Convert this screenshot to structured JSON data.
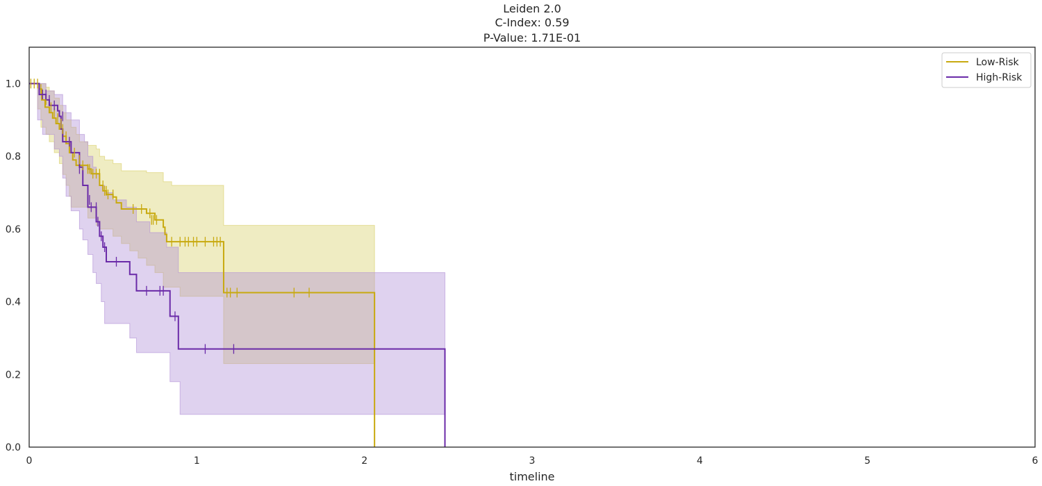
{
  "chart_data": {
    "type": "line",
    "subtype": "kaplan-meier",
    "title_lines": [
      "Leiden 2.0",
      "C-Index: 0.59",
      "P-Value: 1.71E-01"
    ],
    "xlabel": "timeline",
    "ylabel": "",
    "xlim": [
      0,
      6
    ],
    "ylim": [
      0,
      1.1
    ],
    "xticks": [
      0,
      1,
      2,
      3,
      4,
      5,
      6
    ],
    "yticks": [
      0.0,
      0.2,
      0.4,
      0.6,
      0.8,
      1.0
    ],
    "xtick_labels": [
      "0",
      "1",
      "2",
      "3",
      "4",
      "5",
      "6"
    ],
    "ytick_labels": [
      "0.0",
      "0.2",
      "0.4",
      "0.6",
      "0.8",
      "1.0"
    ],
    "grid": false,
    "legend_position": "top-right",
    "series": [
      {
        "name": "Low-Risk",
        "color": "#c8a90f",
        "fill_color": "#d8cf66",
        "steps": [
          [
            0,
            1.0
          ],
          [
            0.06,
            0.985
          ],
          [
            0.075,
            0.955
          ],
          [
            0.095,
            0.935
          ],
          [
            0.12,
            0.92
          ],
          [
            0.14,
            0.905
          ],
          [
            0.16,
            0.89
          ],
          [
            0.18,
            0.875
          ],
          [
            0.2,
            0.855
          ],
          [
            0.22,
            0.835
          ],
          [
            0.24,
            0.81
          ],
          [
            0.26,
            0.79
          ],
          [
            0.28,
            0.775
          ],
          [
            0.35,
            0.765
          ],
          [
            0.37,
            0.752
          ],
          [
            0.42,
            0.72
          ],
          [
            0.44,
            0.705
          ],
          [
            0.46,
            0.695
          ],
          [
            0.5,
            0.688
          ],
          [
            0.52,
            0.672
          ],
          [
            0.55,
            0.672
          ],
          [
            0.55,
            0.655
          ],
          [
            0.63,
            0.655
          ],
          [
            0.7,
            0.643
          ],
          [
            0.75,
            0.625
          ],
          [
            0.8,
            0.605
          ],
          [
            0.81,
            0.585
          ],
          [
            0.82,
            0.565
          ],
          [
            1.16,
            0.425
          ],
          [
            2.06,
            0.0
          ]
        ],
        "end_x": 2.06,
        "ci_lower": [
          [
            0,
            1.0
          ],
          [
            0.05,
            0.93
          ],
          [
            0.07,
            0.88
          ],
          [
            0.1,
            0.86
          ],
          [
            0.12,
            0.84
          ],
          [
            0.15,
            0.81
          ],
          [
            0.18,
            0.78
          ],
          [
            0.2,
            0.75
          ],
          [
            0.22,
            0.72
          ],
          [
            0.24,
            0.69
          ],
          [
            0.25,
            0.66
          ],
          [
            0.3,
            0.66
          ],
          [
            0.35,
            0.63
          ],
          [
            0.4,
            0.61
          ],
          [
            0.42,
            0.6
          ],
          [
            0.5,
            0.58
          ],
          [
            0.55,
            0.56
          ],
          [
            0.6,
            0.54
          ],
          [
            0.65,
            0.52
          ],
          [
            0.7,
            0.5
          ],
          [
            0.75,
            0.48
          ],
          [
            0.8,
            0.44
          ],
          [
            0.9,
            0.415
          ],
          [
            1.16,
            0.23
          ]
        ],
        "ci_upper": [
          [
            0,
            1.0
          ],
          [
            0.05,
            1.0
          ],
          [
            0.1,
            0.99
          ],
          [
            0.12,
            0.98
          ],
          [
            0.15,
            0.96
          ],
          [
            0.18,
            0.94
          ],
          [
            0.2,
            0.92
          ],
          [
            0.22,
            0.9
          ],
          [
            0.25,
            0.88
          ],
          [
            0.28,
            0.86
          ],
          [
            0.3,
            0.84
          ],
          [
            0.35,
            0.83
          ],
          [
            0.4,
            0.82
          ],
          [
            0.42,
            0.8
          ],
          [
            0.45,
            0.79
          ],
          [
            0.5,
            0.78
          ],
          [
            0.55,
            0.76
          ],
          [
            0.7,
            0.755
          ],
          [
            0.8,
            0.73
          ],
          [
            0.85,
            0.72
          ],
          [
            1.16,
            0.61
          ]
        ],
        "ci_end_x": 2.06,
        "censored": [
          [
            0.01,
            1.0
          ],
          [
            0.03,
            1.0
          ],
          [
            0.05,
            1.0
          ],
          [
            0.07,
            0.985
          ],
          [
            0.1,
            0.955
          ],
          [
            0.13,
            0.935
          ],
          [
            0.15,
            0.92
          ],
          [
            0.17,
            0.905
          ],
          [
            0.19,
            0.89
          ],
          [
            0.2,
            0.875
          ],
          [
            0.22,
            0.855
          ],
          [
            0.24,
            0.835
          ],
          [
            0.27,
            0.81
          ],
          [
            0.3,
            0.79
          ],
          [
            0.32,
            0.775
          ],
          [
            0.35,
            0.765
          ],
          [
            0.36,
            0.765
          ],
          [
            0.38,
            0.752
          ],
          [
            0.4,
            0.752
          ],
          [
            0.42,
            0.752
          ],
          [
            0.44,
            0.72
          ],
          [
            0.45,
            0.705
          ],
          [
            0.46,
            0.705
          ],
          [
            0.47,
            0.695
          ],
          [
            0.5,
            0.695
          ],
          [
            0.62,
            0.655
          ],
          [
            0.67,
            0.655
          ],
          [
            0.72,
            0.643
          ],
          [
            0.73,
            0.625
          ],
          [
            0.74,
            0.625
          ],
          [
            0.76,
            0.625
          ],
          [
            0.85,
            0.565
          ],
          [
            0.9,
            0.565
          ],
          [
            0.93,
            0.565
          ],
          [
            0.95,
            0.565
          ],
          [
            0.98,
            0.565
          ],
          [
            1.0,
            0.565
          ],
          [
            1.05,
            0.565
          ],
          [
            1.1,
            0.565
          ],
          [
            1.12,
            0.565
          ],
          [
            1.14,
            0.565
          ],
          [
            1.18,
            0.425
          ],
          [
            1.2,
            0.425
          ],
          [
            1.24,
            0.425
          ],
          [
            1.58,
            0.425
          ],
          [
            1.67,
            0.425
          ]
        ]
      },
      {
        "name": "High-Risk",
        "color": "#6a2aa8",
        "fill_color": "#b08fd6",
        "steps": [
          [
            0,
            1.0
          ],
          [
            0.06,
            0.97
          ],
          [
            0.1,
            0.955
          ],
          [
            0.12,
            0.94
          ],
          [
            0.17,
            0.925
          ],
          [
            0.18,
            0.91
          ],
          [
            0.19,
            0.875
          ],
          [
            0.2,
            0.84
          ],
          [
            0.25,
            0.84
          ],
          [
            0.25,
            0.81
          ],
          [
            0.3,
            0.77
          ],
          [
            0.32,
            0.765
          ],
          [
            0.32,
            0.72
          ],
          [
            0.35,
            0.68
          ],
          [
            0.35,
            0.66
          ],
          [
            0.4,
            0.62
          ],
          [
            0.42,
            0.58
          ],
          [
            0.44,
            0.55
          ],
          [
            0.46,
            0.51
          ],
          [
            0.58,
            0.51
          ],
          [
            0.6,
            0.475
          ],
          [
            0.64,
            0.43
          ],
          [
            0.84,
            0.36
          ],
          [
            0.89,
            0.27
          ],
          [
            2.48,
            0.0
          ]
        ],
        "end_x": 2.48,
        "ci_lower": [
          [
            0,
            1.0
          ],
          [
            0.05,
            0.9
          ],
          [
            0.08,
            0.86
          ],
          [
            0.15,
            0.82
          ],
          [
            0.18,
            0.8
          ],
          [
            0.2,
            0.74
          ],
          [
            0.22,
            0.69
          ],
          [
            0.25,
            0.65
          ],
          [
            0.3,
            0.6
          ],
          [
            0.32,
            0.57
          ],
          [
            0.35,
            0.53
          ],
          [
            0.38,
            0.48
          ],
          [
            0.4,
            0.45
          ],
          [
            0.43,
            0.4
          ],
          [
            0.45,
            0.34
          ],
          [
            0.6,
            0.3
          ],
          [
            0.64,
            0.26
          ],
          [
            0.84,
            0.18
          ],
          [
            0.9,
            0.09
          ]
        ],
        "ci_upper": [
          [
            0,
            1.0
          ],
          [
            0.05,
            1.0
          ],
          [
            0.1,
            0.98
          ],
          [
            0.15,
            0.97
          ],
          [
            0.2,
            0.94
          ],
          [
            0.22,
            0.92
          ],
          [
            0.25,
            0.9
          ],
          [
            0.3,
            0.86
          ],
          [
            0.33,
            0.84
          ],
          [
            0.35,
            0.8
          ],
          [
            0.38,
            0.77
          ],
          [
            0.4,
            0.75
          ],
          [
            0.42,
            0.72
          ],
          [
            0.45,
            0.7
          ],
          [
            0.5,
            0.68
          ],
          [
            0.58,
            0.66
          ],
          [
            0.64,
            0.62
          ],
          [
            0.72,
            0.59
          ],
          [
            0.82,
            0.55
          ],
          [
            0.89,
            0.48
          ]
        ],
        "ci_end_x": 2.48,
        "censored": [
          [
            0.08,
            0.97
          ],
          [
            0.1,
            0.97
          ],
          [
            0.12,
            0.955
          ],
          [
            0.15,
            0.94
          ],
          [
            0.2,
            0.91
          ],
          [
            0.24,
            0.84
          ],
          [
            0.3,
            0.765
          ],
          [
            0.36,
            0.68
          ],
          [
            0.37,
            0.66
          ],
          [
            0.4,
            0.66
          ],
          [
            0.41,
            0.62
          ],
          [
            0.43,
            0.58
          ],
          [
            0.45,
            0.55
          ],
          [
            0.52,
            0.51
          ],
          [
            0.7,
            0.43
          ],
          [
            0.78,
            0.43
          ],
          [
            0.8,
            0.43
          ],
          [
            0.87,
            0.36
          ],
          [
            1.05,
            0.27
          ],
          [
            1.22,
            0.27
          ]
        ]
      }
    ]
  }
}
